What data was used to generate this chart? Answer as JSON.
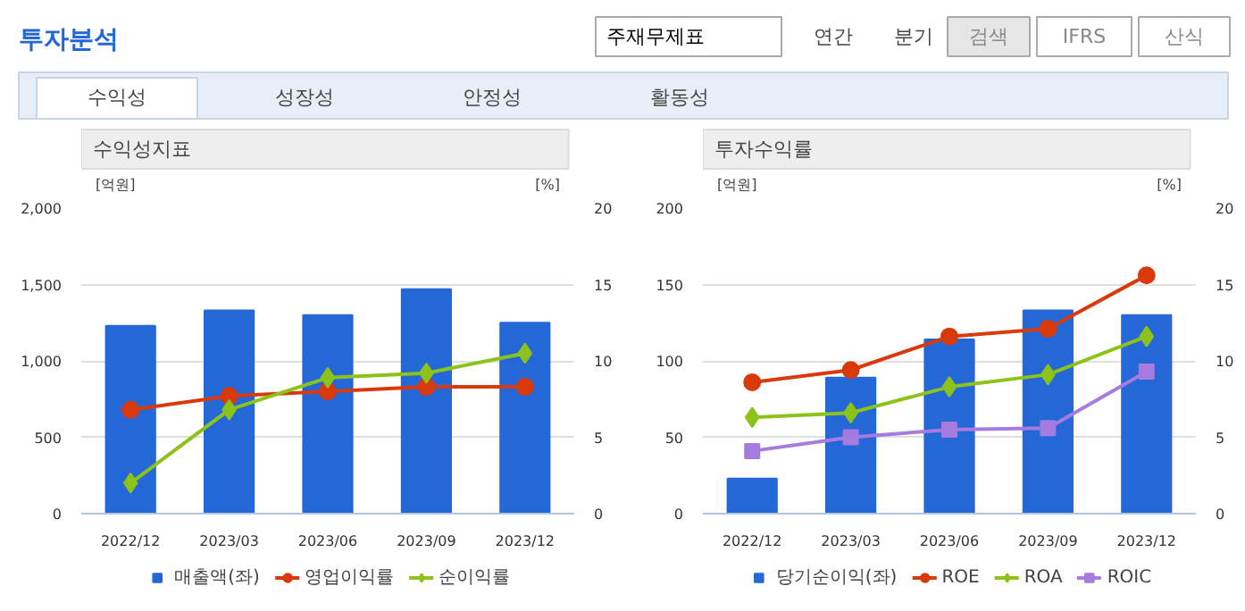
{
  "chart_data": [
    {
      "type": "other",
      "title": "투자분석",
      "annotations": [
        "주재무제표",
        "연간",
        "분기",
        "검색",
        "IFRS",
        "산식",
        "수익성",
        "성장성",
        "안정성",
        "활동성"
      ]
    },
    {
      "type": "bar",
      "title": "수익성지표",
      "ylabel": "[억원]",
      "y2label": "[%]",
      "categories": [
        "2022/12",
        "2023/03",
        "2023/06",
        "2023/09",
        "2023/12"
      ],
      "ylim": [
        0,
        2000
      ],
      "yticks": [
        0,
        500,
        {
          "value": 1000,
          "label": "1,000"
        },
        {
          "value": 1500,
          "label": "1,500"
        },
        {
          "value": 2000,
          "label": "2,000"
        }
      ],
      "y2lim": [
        0,
        20
      ],
      "y2ticks": [
        0,
        5,
        10,
        15,
        20
      ],
      "grid": "y",
      "legend": "bottom",
      "series": [
        {
          "name": "매출액(좌)",
          "type": "bar",
          "color": "#2468d8",
          "values": [
            1230,
            1330,
            1300,
            1470,
            1250
          ]
        },
        {
          "name": "영업이익률",
          "type": "line",
          "axis": "y2",
          "marker": "circle",
          "color": "#d93a0b",
          "values": [
            6.8,
            7.7,
            8.0,
            8.3,
            8.3
          ]
        },
        {
          "name": "순이익률",
          "type": "line",
          "axis": "y2",
          "marker": "diamond",
          "color": "#8cc21a",
          "values": [
            2.0,
            6.8,
            8.9,
            9.2,
            10.5
          ]
        }
      ]
    },
    {
      "type": "bar",
      "title": "투자수익률",
      "ylabel": "[억원]",
      "y2label": "[%]",
      "categories": [
        "2022/12",
        "2023/03",
        "2023/06",
        "2023/09",
        "2023/12"
      ],
      "ylim": [
        0,
        200
      ],
      "yticks": [
        0,
        50,
        100,
        150,
        200
      ],
      "y2lim": [
        0,
        20
      ],
      "y2ticks": [
        0,
        5,
        10,
        15,
        20
      ],
      "grid": "y",
      "legend": "bottom",
      "series": [
        {
          "name": "당기순이익(좌)",
          "type": "bar",
          "color": "#2468d8",
          "values": [
            23,
            89,
            114,
            133,
            130
          ]
        },
        {
          "name": "ROE",
          "type": "line",
          "axis": "y2",
          "marker": "circle",
          "color": "#d93a0b",
          "values": [
            8.6,
            9.4,
            11.6,
            12.1,
            15.6
          ]
        },
        {
          "name": "ROA",
          "type": "line",
          "axis": "y2",
          "marker": "diamond",
          "color": "#8cc21a",
          "values": [
            6.3,
            6.6,
            8.3,
            9.1,
            11.6
          ]
        },
        {
          "name": "ROIC",
          "type": "line",
          "axis": "y2",
          "marker": "square",
          "color": "#a57be0",
          "values": [
            4.1,
            5.0,
            5.5,
            5.6,
            9.3
          ]
        }
      ]
    }
  ]
}
